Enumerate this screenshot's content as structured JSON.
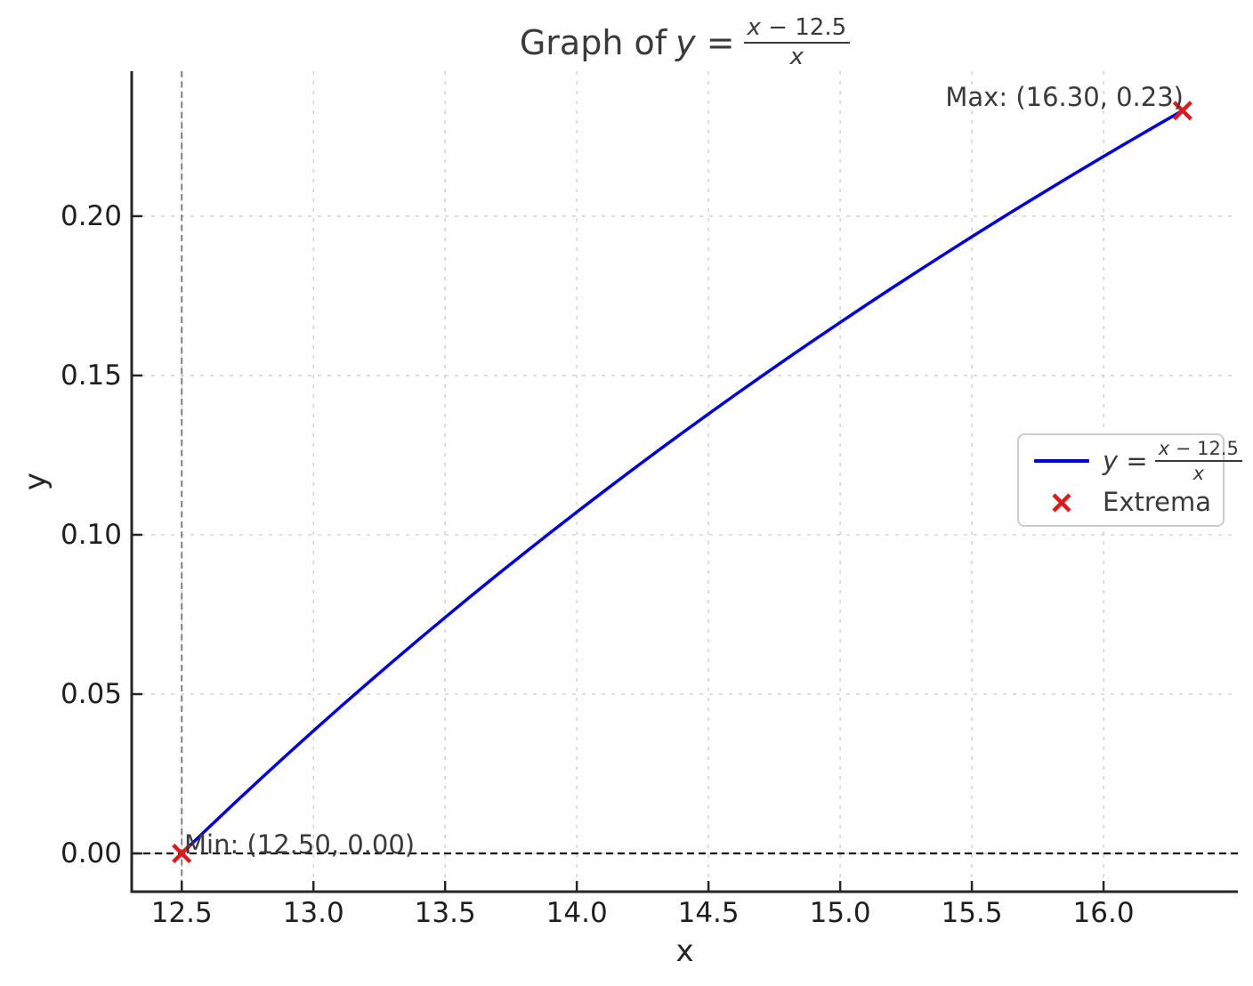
{
  "title": {
    "prefix": "Graph of",
    "lhs": "y =",
    "frac_num": "x − 12.5",
    "frac_den": "x"
  },
  "axes": {
    "xlabel": "x",
    "ylabel": "y"
  },
  "annotations": {
    "max": "Max: (16.30, 0.23)",
    "min": "Min: (12.50, 0.00)"
  },
  "legend": {
    "line_lhs": "y =",
    "line_frac_num": "x − 12.5",
    "line_frac_den": "x",
    "extrema_label": "Extrema"
  },
  "colors": {
    "curve": "#0000d8",
    "extrema": "#dc1c1c",
    "grid": "#cccccc",
    "axhline": "#111111",
    "axvline": "#7f7f7f",
    "spine": "#262626",
    "tick": "#262626",
    "text": "#3a3a3a"
  },
  "chart_data": {
    "type": "line",
    "title": "Graph of y = (x - 12.5)/x",
    "xlabel": "x",
    "ylabel": "y",
    "xlim": [
      12.31,
      16.51
    ],
    "ylim": [
      -0.012,
      0.2455
    ],
    "grid": true,
    "legend_position": "center right",
    "xticks": [
      {
        "v": 12.5,
        "label": "12.5"
      },
      {
        "v": 13.0,
        "label": "13.0"
      },
      {
        "v": 13.5,
        "label": "13.5"
      },
      {
        "v": 14.0,
        "label": "14.0"
      },
      {
        "v": 14.5,
        "label": "14.5"
      },
      {
        "v": 15.0,
        "label": "15.0"
      },
      {
        "v": 15.5,
        "label": "15.5"
      },
      {
        "v": 16.0,
        "label": "16.0"
      }
    ],
    "yticks": [
      {
        "v": 0.0,
        "label": "0.00"
      },
      {
        "v": 0.05,
        "label": "0.05"
      },
      {
        "v": 0.1,
        "label": "0.10"
      },
      {
        "v": 0.15,
        "label": "0.15"
      },
      {
        "v": 0.2,
        "label": "0.20"
      }
    ],
    "series": [
      {
        "name": "y = (x - 12.5)/x",
        "x": [
          12.5,
          12.6,
          12.7,
          12.8,
          12.9,
          13.0,
          13.1,
          13.2,
          13.3,
          13.4,
          13.5,
          13.6,
          13.7,
          13.8,
          13.9,
          14.0,
          14.1,
          14.2,
          14.3,
          14.4,
          14.5,
          14.6,
          14.7,
          14.8,
          14.9,
          15.0,
          15.1,
          15.2,
          15.3,
          15.4,
          15.5,
          15.6,
          15.7,
          15.8,
          15.9,
          16.0,
          16.1,
          16.2,
          16.3
        ],
        "y": [
          0.0,
          0.00794,
          0.01575,
          0.02344,
          0.03101,
          0.03846,
          0.0458,
          0.05303,
          0.06015,
          0.06716,
          0.07407,
          0.08088,
          0.08759,
          0.0942,
          0.10072,
          0.10714,
          0.11348,
          0.11972,
          0.12587,
          0.13194,
          0.13793,
          0.14384,
          0.14966,
          0.15541,
          0.16107,
          0.16667,
          0.17219,
          0.17763,
          0.18301,
          0.18831,
          0.19355,
          0.19872,
          0.20382,
          0.20886,
          0.21384,
          0.21875,
          0.2236,
          0.2284,
          0.23313
        ]
      }
    ],
    "extrema": [
      {
        "x": 12.5,
        "y": 0.0,
        "label": "Min: (12.50, 0.00)"
      },
      {
        "x": 16.3,
        "y": 0.23313,
        "label": "Max: (16.30, 0.23)"
      }
    ],
    "reference_lines": {
      "vertical_x": 12.5,
      "horizontal_y": 0.0
    }
  }
}
